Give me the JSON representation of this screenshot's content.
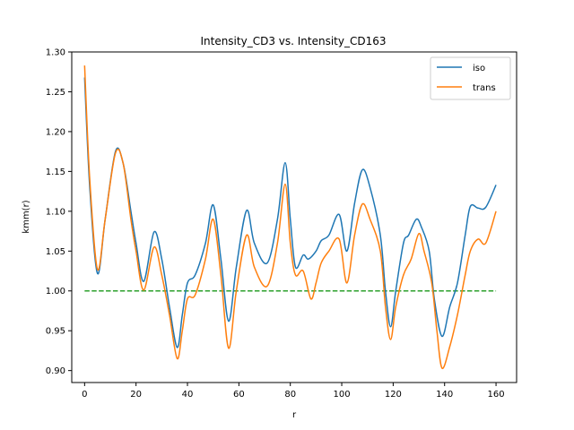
{
  "chart_data": {
    "type": "line",
    "title": "Intensity_CD3 vs. Intensity_CD163",
    "xlabel": "r",
    "ylabel": "kmm(r)",
    "xlim": [
      -5,
      168
    ],
    "ylim": [
      0.885,
      1.3
    ],
    "xticks": [
      0,
      20,
      40,
      60,
      80,
      100,
      120,
      140,
      160
    ],
    "yticks": [
      "0.90",
      "0.95",
      "1.00",
      "1.05",
      "1.10",
      "1.15",
      "1.20",
      "1.25",
      "1.30"
    ],
    "legend_position": "top-right",
    "reference_line": {
      "y": 1.0,
      "x_range": [
        0,
        160
      ],
      "style": "dashed",
      "color": "#2ca02c"
    },
    "series": [
      {
        "name": "iso",
        "color": "#1f77b4",
        "points": [
          [
            0,
            1.268
          ],
          [
            2,
            1.13
          ],
          [
            5,
            1.022
          ],
          [
            8,
            1.09
          ],
          [
            12,
            1.175
          ],
          [
            15,
            1.16
          ],
          [
            18,
            1.1
          ],
          [
            20,
            1.06
          ],
          [
            23,
            1.012
          ],
          [
            27,
            1.074
          ],
          [
            30,
            1.04
          ],
          [
            33,
            0.98
          ],
          [
            36,
            0.929
          ],
          [
            38,
            0.97
          ],
          [
            40,
            1.01
          ],
          [
            43,
            1.02
          ],
          [
            47,
            1.06
          ],
          [
            50,
            1.108
          ],
          [
            53,
            1.04
          ],
          [
            56,
            0.962
          ],
          [
            59,
            1.03
          ],
          [
            63,
            1.101
          ],
          [
            66,
            1.06
          ],
          [
            71,
            1.035
          ],
          [
            75,
            1.09
          ],
          [
            78,
            1.161
          ],
          [
            80,
            1.09
          ],
          [
            82,
            1.03
          ],
          [
            85,
            1.045
          ],
          [
            87,
            1.04
          ],
          [
            90,
            1.05
          ],
          [
            92,
            1.063
          ],
          [
            95,
            1.07
          ],
          [
            99,
            1.096
          ],
          [
            102,
            1.05
          ],
          [
            105,
            1.11
          ],
          [
            108,
            1.152
          ],
          [
            111,
            1.13
          ],
          [
            115,
            1.07
          ],
          [
            117,
            1.0
          ],
          [
            119,
            0.955
          ],
          [
            121,
            1.0
          ],
          [
            124,
            1.06
          ],
          [
            126,
            1.07
          ],
          [
            129,
            1.09
          ],
          [
            131,
            1.08
          ],
          [
            134,
            1.05
          ],
          [
            136,
            0.99
          ],
          [
            139,
            0.943
          ],
          [
            142,
            0.98
          ],
          [
            145,
            1.01
          ],
          [
            148,
            1.07
          ],
          [
            150,
            1.106
          ],
          [
            153,
            1.104
          ],
          [
            156,
            1.105
          ],
          [
            160,
            1.133
          ]
        ]
      },
      {
        "name": "trans",
        "color": "#ff7f0e",
        "points": [
          [
            0,
            1.283
          ],
          [
            2,
            1.14
          ],
          [
            5,
            1.027
          ],
          [
            8,
            1.09
          ],
          [
            12,
            1.173
          ],
          [
            15,
            1.16
          ],
          [
            18,
            1.09
          ],
          [
            20,
            1.05
          ],
          [
            23,
            1.001
          ],
          [
            27,
            1.055
          ],
          [
            30,
            1.02
          ],
          [
            33,
            0.97
          ],
          [
            36,
            0.915
          ],
          [
            38,
            0.95
          ],
          [
            40,
            0.99
          ],
          [
            43,
            0.995
          ],
          [
            47,
            1.04
          ],
          [
            50,
            1.09
          ],
          [
            53,
            1.02
          ],
          [
            56,
            0.928
          ],
          [
            59,
            1.0
          ],
          [
            63,
            1.07
          ],
          [
            66,
            1.03
          ],
          [
            71,
            1.006
          ],
          [
            75,
            1.06
          ],
          [
            78,
            1.134
          ],
          [
            80,
            1.06
          ],
          [
            82,
            1.02
          ],
          [
            85,
            1.025
          ],
          [
            88,
            0.99
          ],
          [
            90,
            1.01
          ],
          [
            92,
            1.035
          ],
          [
            95,
            1.05
          ],
          [
            99,
            1.065
          ],
          [
            102,
            1.01
          ],
          [
            105,
            1.07
          ],
          [
            108,
            1.109
          ],
          [
            111,
            1.09
          ],
          [
            115,
            1.05
          ],
          [
            117,
            0.98
          ],
          [
            119,
            0.939
          ],
          [
            121,
            0.98
          ],
          [
            124,
            1.02
          ],
          [
            127,
            1.04
          ],
          [
            130,
            1.072
          ],
          [
            132,
            1.05
          ],
          [
            135,
            1.01
          ],
          [
            137,
            0.95
          ],
          [
            139,
            0.903
          ],
          [
            142,
            0.93
          ],
          [
            145,
            0.97
          ],
          [
            148,
            1.02
          ],
          [
            150,
            1.05
          ],
          [
            153,
            1.065
          ],
          [
            156,
            1.06
          ],
          [
            160,
            1.1
          ]
        ]
      }
    ]
  }
}
